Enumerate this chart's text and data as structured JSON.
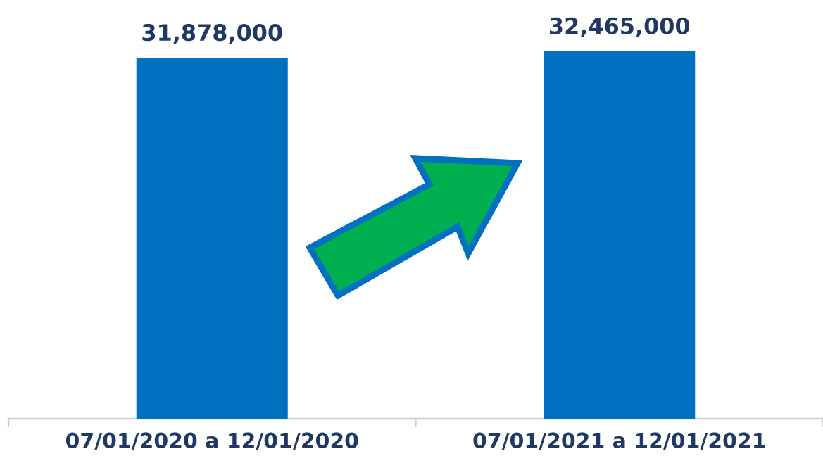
{
  "chart_data": {
    "type": "bar",
    "categories": [
      "07/01/2020 a 12/01/2020",
      "07/01/2021 a 12/01/2021"
    ],
    "values": [
      31878000,
      32465000
    ],
    "value_labels": [
      "31,878,000",
      "32,465,000"
    ],
    "color": "#0070c0",
    "grid": false
  }
}
